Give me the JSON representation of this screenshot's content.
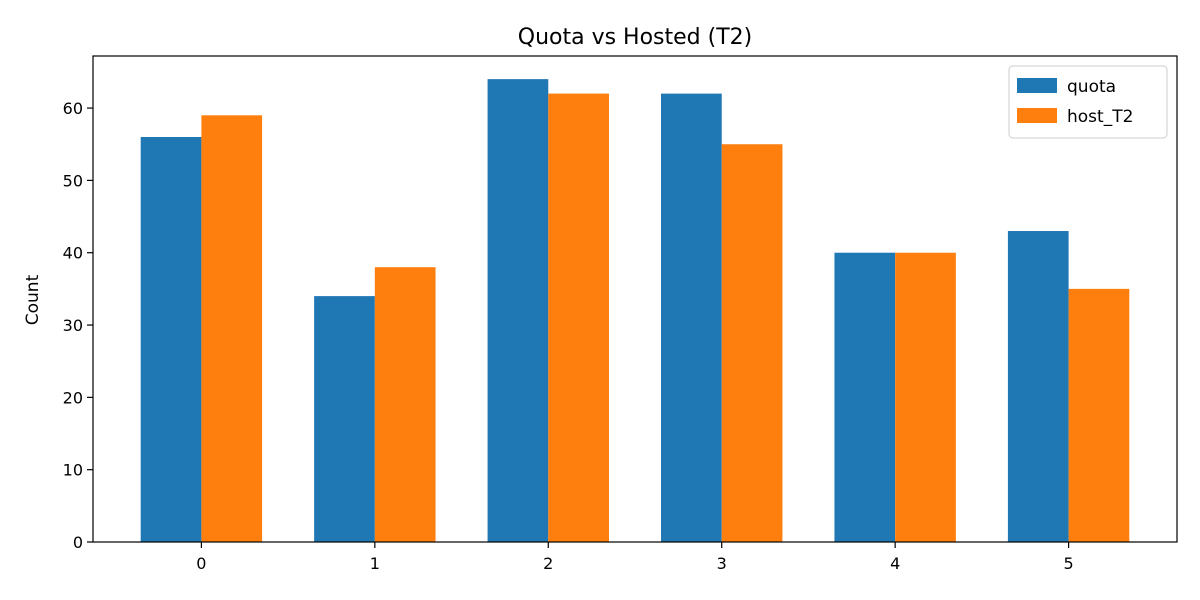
{
  "chart_data": {
    "type": "bar",
    "title": "Quota vs Hosted (T2)",
    "xlabel": "",
    "ylabel": "Count",
    "categories": [
      "0",
      "1",
      "2",
      "3",
      "4",
      "5"
    ],
    "series": [
      {
        "name": "quota",
        "values": [
          56,
          34,
          64,
          62,
          40,
          43
        ],
        "color": "#1f77b4"
      },
      {
        "name": "host_T2",
        "values": [
          59,
          38,
          62,
          55,
          40,
          35
        ],
        "color": "#ff7f0e"
      }
    ],
    "ylim": [
      0,
      67.2
    ],
    "yticks": [
      0,
      10,
      20,
      30,
      40,
      50,
      60
    ],
    "grid": false,
    "legend": "top-right"
  }
}
